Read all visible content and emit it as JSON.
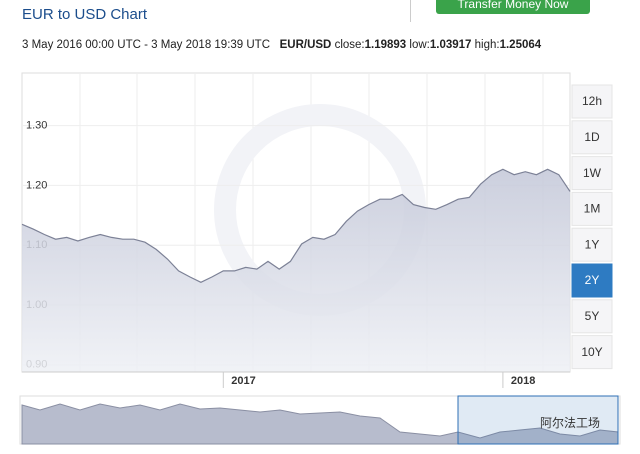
{
  "header": {
    "title": "EUR to USD Chart",
    "button": "Transfer Money Now",
    "range": "3 May 2016 00:00 UTC - 3 May 2018 19:39 UTC",
    "pair": "EUR/USD",
    "close_label": "close:",
    "close": 1.19893,
    "low_label": "low:",
    "low": 1.03917,
    "high_label": "high:",
    "high": 1.25064
  },
  "range_buttons": [
    {
      "label": "12h",
      "selected": false
    },
    {
      "label": "1D",
      "selected": false
    },
    {
      "label": "1W",
      "selected": false
    },
    {
      "label": "1M",
      "selected": false
    },
    {
      "label": "1Y",
      "selected": false
    },
    {
      "label": "2Y",
      "selected": true
    },
    {
      "label": "5Y",
      "selected": false
    },
    {
      "label": "10Y",
      "selected": false
    }
  ],
  "watermark": "阿尔法工场",
  "chart_data": {
    "type": "area",
    "color": "#7c8196",
    "categories": [
      null,
      null,
      null,
      null,
      null,
      null,
      null,
      null,
      null,
      null,
      null,
      null,
      null,
      null,
      null,
      null,
      null,
      null,
      "2017",
      null,
      null,
      null,
      null,
      null,
      null,
      null,
      null,
      null,
      null,
      null,
      null,
      null,
      null,
      null,
      null,
      null,
      null,
      null,
      null,
      null,
      null,
      null,
      null,
      "2018",
      null,
      null,
      null,
      null,
      null,
      null
    ],
    "values": [
      1.135,
      1.127,
      1.118,
      1.11,
      1.113,
      1.107,
      1.113,
      1.118,
      1.113,
      1.11,
      1.11,
      1.105,
      1.093,
      1.077,
      1.057,
      1.047,
      1.038,
      1.047,
      1.057,
      1.057,
      1.063,
      1.06,
      1.073,
      1.06,
      1.073,
      1.102,
      1.113,
      1.11,
      1.118,
      1.14,
      1.157,
      1.168,
      1.177,
      1.177,
      1.185,
      1.168,
      1.163,
      1.16,
      1.168,
      1.177,
      1.18,
      1.202,
      1.218,
      1.227,
      1.218,
      1.223,
      1.218,
      1.227,
      1.218,
      1.19
    ],
    "ylim": [
      0.888,
      1.388
    ],
    "yticks": [
      {
        "value": 0.9,
        "label": "0.90"
      },
      {
        "value": 1.0,
        "label": "1.00"
      },
      {
        "value": 1.1,
        "label": "1.10"
      },
      {
        "value": 1.2,
        "label": "1.20"
      },
      {
        "value": 1.3,
        "label": "1.30"
      }
    ],
    "grid": true
  }
}
